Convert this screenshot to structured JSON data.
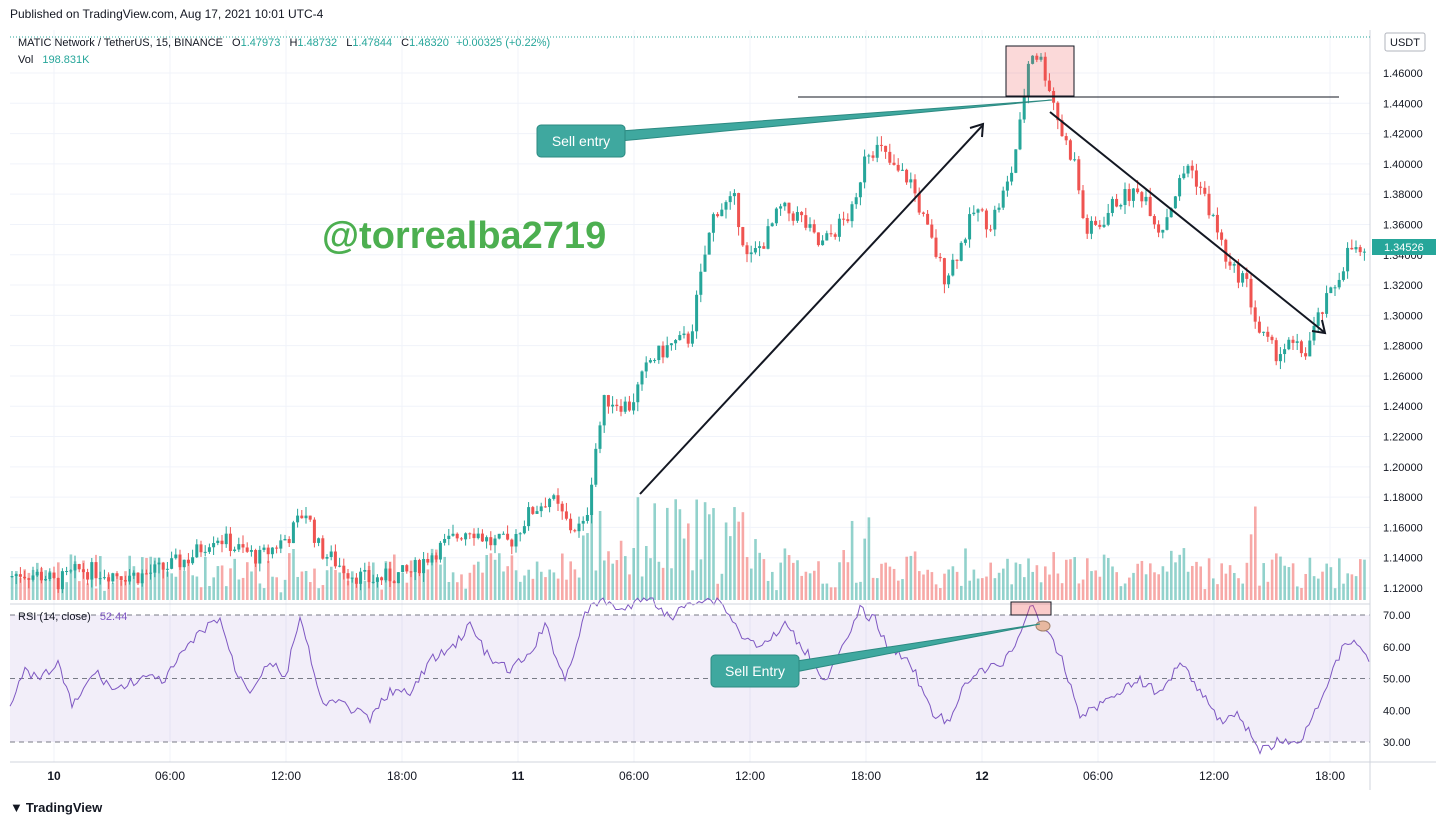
{
  "header": {
    "published": "Published on TradingView.com, Aug 17, 2021 10:01 UTC-4"
  },
  "legend": {
    "symbol": "MATIC Network / TetherUS, 15, BINANCE",
    "o_label": "O",
    "o_value": "1.47973",
    "h_label": "H",
    "h_value": "1.48732",
    "l_label": "L",
    "l_value": "1.47844",
    "c_label": "C",
    "c_value": "1.48320",
    "change": "+0.00325 (+0.22%)",
    "vol_label": "Vol",
    "vol_value": "198.831K"
  },
  "currency": "USDT",
  "last_price_label": "1.34526",
  "watermark": "@torrealba2719",
  "annotations": {
    "sell_entry_main": "Sell entry",
    "sell_entry_rsi": "Sell Entry"
  },
  "rsi": {
    "label": "RSI (14, close)",
    "value": "52.44"
  },
  "footer": {
    "brand": "TradingView"
  },
  "colors": {
    "up": "#26a69a",
    "down": "#ef5350",
    "rsi_line": "#7e57c2",
    "annotation": "#3fa89f",
    "watermark": "#4caf50"
  },
  "chart_data": {
    "type": "candlestick",
    "symbol": "MATIC Network / TetherUS",
    "interval": "15",
    "exchange": "BINANCE",
    "y_axis": {
      "ticks": [
        "1.46000",
        "1.44000",
        "1.42000",
        "1.40000",
        "1.38000",
        "1.36000",
        "1.34000",
        "1.32000",
        "1.30000",
        "1.28000",
        "1.26000",
        "1.24000",
        "1.22000",
        "1.20000",
        "1.18000",
        "1.16000",
        "1.14000",
        "1.12000"
      ],
      "range": [
        1.11,
        1.49
      ]
    },
    "x_axis": {
      "ticks": [
        "10",
        "06:00",
        "12:00",
        "18:00",
        "11",
        "06:00",
        "12:00",
        "18:00",
        "12",
        "06:00",
        "12:00",
        "18:00"
      ]
    },
    "rsi_axis": {
      "ticks": [
        "70.00",
        "60.00",
        "50.00",
        "40.00",
        "30.00"
      ],
      "range": [
        25,
        75
      ],
      "band": [
        30,
        70
      ]
    },
    "price_path": [
      [
        0,
        1.125
      ],
      [
        20,
        1.13
      ],
      [
        45,
        1.128
      ],
      [
        55,
        1.123
      ],
      [
        80,
        1.132
      ],
      [
        110,
        1.13
      ],
      [
        140,
        1.128
      ],
      [
        160,
        1.132
      ],
      [
        190,
        1.14
      ],
      [
        215,
        1.155
      ],
      [
        240,
        1.145
      ],
      [
        260,
        1.14
      ],
      [
        290,
        1.155
      ],
      [
        305,
        1.172
      ],
      [
        320,
        1.145
      ],
      [
        350,
        1.13
      ],
      [
        370,
        1.125
      ],
      [
        385,
        1.127
      ],
      [
        410,
        1.13
      ],
      [
        430,
        1.142
      ],
      [
        470,
        1.16
      ],
      [
        490,
        1.15
      ],
      [
        510,
        1.15
      ],
      [
        530,
        1.17
      ],
      [
        550,
        1.18
      ],
      [
        570,
        1.16
      ],
      [
        585,
        1.16
      ],
      [
        595,
        1.21
      ],
      [
        605,
        1.245
      ],
      [
        630,
        1.24
      ],
      [
        650,
        1.27
      ],
      [
        670,
        1.28
      ],
      [
        690,
        1.285
      ],
      [
        705,
        1.34
      ],
      [
        715,
        1.37
      ],
      [
        735,
        1.375
      ],
      [
        748,
        1.335
      ],
      [
        765,
        1.35
      ],
      [
        780,
        1.37
      ],
      [
        800,
        1.365
      ],
      [
        820,
        1.345
      ],
      [
        840,
        1.36
      ],
      [
        855,
        1.37
      ],
      [
        865,
        1.41
      ],
      [
        880,
        1.41
      ],
      [
        895,
        1.395
      ],
      [
        910,
        1.39
      ],
      [
        925,
        1.36
      ],
      [
        945,
        1.325
      ],
      [
        960,
        1.345
      ],
      [
        975,
        1.37
      ],
      [
        990,
        1.36
      ],
      [
        1010,
        1.39
      ],
      [
        1020,
        1.425
      ],
      [
        1030,
        1.475
      ],
      [
        1040,
        1.47
      ],
      [
        1050,
        1.45
      ],
      [
        1062,
        1.42
      ],
      [
        1075,
        1.4
      ],
      [
        1085,
        1.355
      ],
      [
        1100,
        1.36
      ],
      [
        1115,
        1.375
      ],
      [
        1130,
        1.38
      ],
      [
        1145,
        1.38
      ],
      [
        1160,
        1.355
      ],
      [
        1175,
        1.38
      ],
      [
        1188,
        1.4
      ],
      [
        1200,
        1.385
      ],
      [
        1215,
        1.36
      ],
      [
        1230,
        1.33
      ],
      [
        1245,
        1.325
      ],
      [
        1258,
        1.29
      ],
      [
        1275,
        1.275
      ],
      [
        1290,
        1.28
      ],
      [
        1305,
        1.275
      ],
      [
        1320,
        1.3
      ],
      [
        1335,
        1.32
      ],
      [
        1350,
        1.345
      ],
      [
        1370,
        1.335
      ]
    ],
    "rsi_path": [
      [
        10,
        702
      ],
      [
        25,
        672
      ],
      [
        40,
        680
      ],
      [
        58,
        663
      ],
      [
        72,
        707
      ],
      [
        95,
        672
      ],
      [
        115,
        690
      ],
      [
        140,
        678
      ],
      [
        165,
        680
      ],
      [
        185,
        650
      ],
      [
        205,
        628
      ],
      [
        220,
        618
      ],
      [
        235,
        670
      ],
      [
        250,
        690
      ],
      [
        270,
        660
      ],
      [
        285,
        680
      ],
      [
        300,
        615
      ],
      [
        320,
        700
      ],
      [
        345,
        705
      ],
      [
        370,
        720
      ],
      [
        390,
        690
      ],
      [
        410,
        695
      ],
      [
        430,
        660
      ],
      [
        450,
        650
      ],
      [
        470,
        625
      ],
      [
        490,
        660
      ],
      [
        510,
        670
      ],
      [
        530,
        655
      ],
      [
        545,
        625
      ],
      [
        565,
        680
      ],
      [
        585,
        615
      ],
      [
        600,
        600
      ],
      [
        625,
        610
      ],
      [
        650,
        595
      ],
      [
        670,
        620
      ],
      [
        690,
        600
      ],
      [
        720,
        600
      ],
      [
        745,
        640
      ],
      [
        765,
        645
      ],
      [
        785,
        625
      ],
      [
        805,
        650
      ],
      [
        825,
        680
      ],
      [
        845,
        645
      ],
      [
        860,
        610
      ],
      [
        875,
        620
      ],
      [
        890,
        650
      ],
      [
        910,
        660
      ],
      [
        930,
        710
      ],
      [
        950,
        725
      ],
      [
        965,
        680
      ],
      [
        985,
        670
      ],
      [
        1000,
        665
      ],
      [
        1015,
        645
      ],
      [
        1030,
        605
      ],
      [
        1045,
        630
      ],
      [
        1062,
        660
      ],
      [
        1080,
        715
      ],
      [
        1100,
        705
      ],
      [
        1120,
        690
      ],
      [
        1140,
        680
      ],
      [
        1160,
        695
      ],
      [
        1180,
        660
      ],
      [
        1200,
        690
      ],
      [
        1220,
        720
      ],
      [
        1240,
        715
      ],
      [
        1260,
        752
      ],
      [
        1280,
        740
      ],
      [
        1300,
        745
      ],
      [
        1315,
        710
      ],
      [
        1330,
        680
      ],
      [
        1345,
        640
      ],
      [
        1360,
        645
      ],
      [
        1372,
        665
      ]
    ]
  }
}
